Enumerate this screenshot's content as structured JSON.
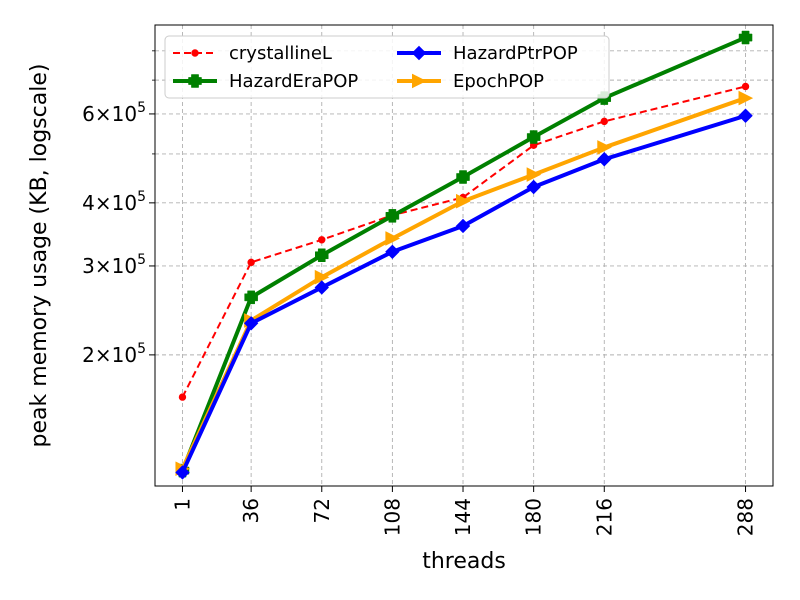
{
  "chart_data": {
    "type": "line",
    "xlabel": "threads",
    "ylabel": "peak memory usage (KB, logscale)",
    "y_scale": "log",
    "x": [
      1,
      36,
      72,
      108,
      144,
      180,
      216,
      288
    ],
    "x_tick_labels": [
      "1",
      "36",
      "72",
      "108",
      "144",
      "180",
      "216",
      "288"
    ],
    "xlim": [
      -13,
      302
    ],
    "ylim": [
      110000,
      900000
    ],
    "y_ticks": [
      {
        "value": 200000,
        "mantissa": "2",
        "base": "10",
        "exponent": "5"
      },
      {
        "value": 300000,
        "mantissa": "3",
        "base": "10",
        "exponent": "5"
      },
      {
        "value": 400000,
        "mantissa": "4",
        "base": "10",
        "exponent": "5"
      },
      {
        "value": 600000,
        "mantissa": "6",
        "base": "10",
        "exponent": "5"
      }
    ],
    "y_minor_grid": [
      500000,
      700000,
      800000
    ],
    "grid": true,
    "legend_position": "top-left",
    "legend_columns": 2,
    "series": [
      {
        "name": "crystallineL",
        "color": "#ff0000",
        "style": "dashed",
        "marker": "circle",
        "values": [
          165000,
          305000,
          338000,
          378000,
          410000,
          520000,
          580000,
          680000
        ]
      },
      {
        "name": "HazardEraPOP",
        "color": "#008000",
        "style": "solid",
        "marker": "plus",
        "values": [
          118000,
          260000,
          315000,
          377000,
          450000,
          540000,
          645000,
          850000
        ]
      },
      {
        "name": "HazardPtrPOP",
        "color": "#0000ff",
        "style": "solid",
        "marker": "diamond",
        "values": [
          117000,
          231000,
          272000,
          320000,
          360000,
          430000,
          488000,
          595000
        ]
      },
      {
        "name": "EpochPOP",
        "color": "#ffa500",
        "style": "solid",
        "marker": "triangle-right",
        "values": [
          119000,
          234000,
          285000,
          340000,
          403000,
          455000,
          515000,
          645000
        ]
      }
    ],
    "legend_order": [
      0,
      1,
      2,
      3
    ]
  }
}
